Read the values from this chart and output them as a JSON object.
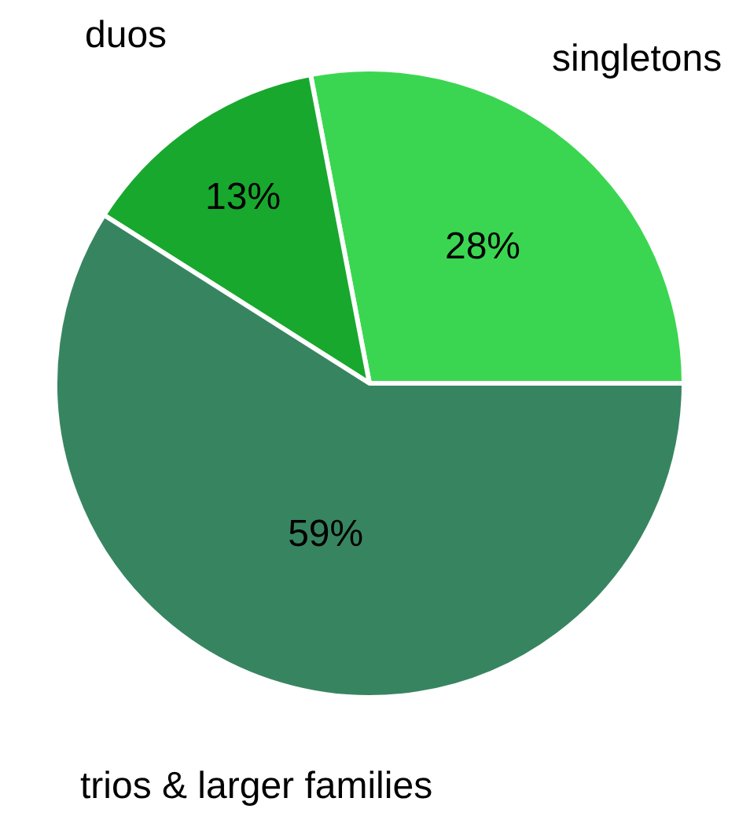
{
  "chart_data": {
    "type": "pie",
    "categories": [
      "singletons",
      "duos",
      "trios & larger families"
    ],
    "values": [
      28,
      13,
      59
    ],
    "colors": [
      "#3bd651",
      "#18a82e",
      "#378560"
    ],
    "value_labels": [
      "28%",
      "13%",
      "59%"
    ],
    "legend": false
  }
}
